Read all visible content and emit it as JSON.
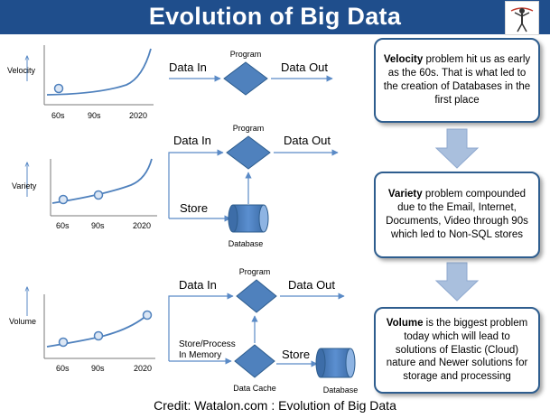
{
  "header": {
    "title": "Evolution of Big Data"
  },
  "rows": [
    {
      "metric": "Velocity",
      "ticks": [
        "60s",
        "90s",
        "2020"
      ]
    },
    {
      "metric": "Variety",
      "ticks": [
        "60s",
        "90s",
        "2020"
      ]
    },
    {
      "metric": "Volume",
      "ticks": [
        "60s",
        "90s",
        "2020"
      ]
    }
  ],
  "flow": {
    "program": "Program",
    "data_in": "Data In",
    "data_out": "Data Out",
    "store": "Store",
    "database": "Database",
    "store_process_line1": "Store/Process",
    "store_process_line2": "In Memory",
    "data_cache": "Data Cache"
  },
  "boxes": [
    {
      "lead": "Velocity",
      "text": " problem hit us as early as the 60s. That is what led to the creation of Databases in the first place"
    },
    {
      "lead": "Variety",
      "text": " problem compounded due to the Email, Internet, Documents, Video through 90s which led to Non-SQL stores"
    },
    {
      "lead": "Volume",
      "text": " is the biggest problem today which will lead to solutions of Elastic (Cloud) nature and Newer solutions for storage and processing"
    }
  ],
  "credit": "Credit:  Watalon.com : Evolution of Big Data",
  "colors": {
    "title_bg": "#1f4e8c",
    "shape_fill": "#4f81bd",
    "shape_stroke": "#2e5d8e",
    "arrow": "#5a8ac6",
    "down_arrow": "#a9bfdd"
  }
}
